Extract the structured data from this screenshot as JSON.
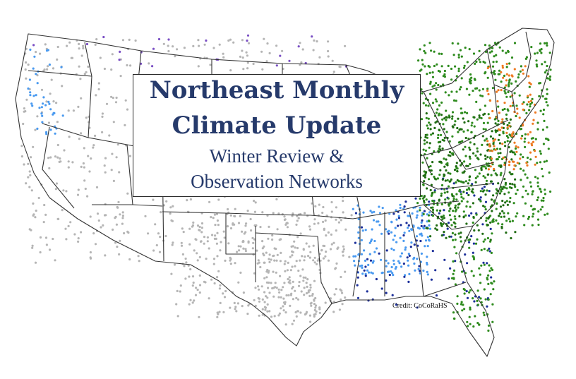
{
  "title": {
    "line1": "Northeast Monthly",
    "line2": "Climate Update",
    "line3": "Winter Review &",
    "line4": "Observation Networks"
  },
  "credit": "Credit: CoCoRaHS",
  "colors": {
    "title_text": "#263a6b",
    "border": "#2b2b2b",
    "state_lines": "#333333",
    "station_gray": "#b5b5b5",
    "station_green": "#2e8b1e",
    "station_dark_green": "#1f6b12",
    "station_orange": "#ee7a22",
    "station_light_blue": "#4a9af0",
    "station_navy": "#1c2f9a",
    "station_purple": "#7a4fc4"
  }
}
